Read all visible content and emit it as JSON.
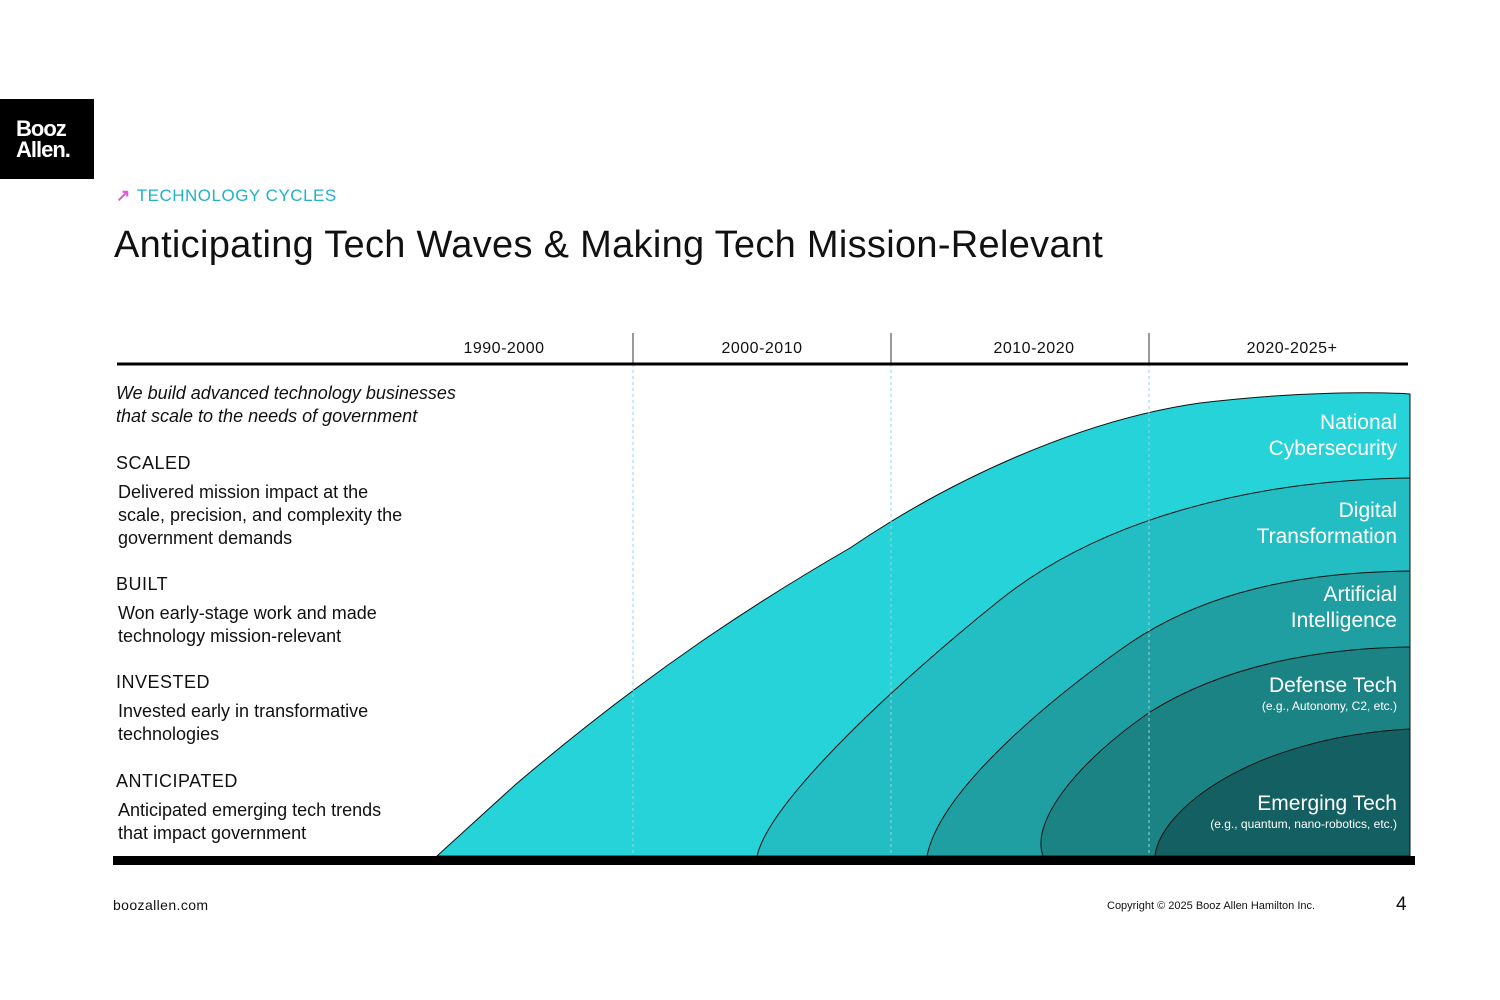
{
  "logo": {
    "line1": "Booz",
    "line2": "Allen."
  },
  "kicker": "TECHNOLOGY CYCLES",
  "title": "Anticipating Tech Waves & Making Tech Mission-Relevant",
  "periods": [
    "1990-2000",
    "2000-2010",
    "2010-2020",
    "2020-2025+"
  ],
  "intro": {
    "line1": "We build advanced technology businesses",
    "line2": "that scale to the needs of government"
  },
  "stages": [
    {
      "heading": "SCALED",
      "text": "Delivered mission impact at the scale, precision, and complexity the government demands"
    },
    {
      "heading": "BUILT",
      "text": "Won early-stage work and made technology mission-relevant"
    },
    {
      "heading": "INVESTED",
      "text": "Invested early in transformative technologies"
    },
    {
      "heading": "ANTICIPATED",
      "text": "Anticipated emerging tech trends that impact government"
    }
  ],
  "waves": [
    {
      "label": "National Cybersecurity",
      "color": "#26d3d9"
    },
    {
      "label": "Digital Transformation",
      "color": "#22bec3"
    },
    {
      "label": "Artificial Intelligence",
      "color": "#1f9fa2"
    },
    {
      "label": "Defense Tech",
      "sub": "(e.g., Autonomy, C2, etc.)",
      "color": "#1c8385"
    },
    {
      "label": "Emerging Tech",
      "sub": "(e.g., quantum, nano-robotics, etc.)",
      "color": "#135f62"
    }
  ],
  "footer": {
    "site": "boozallen.com",
    "copyright": "Copyright © 2025 Booz Allen Hamilton Inc.",
    "page": "4"
  }
}
